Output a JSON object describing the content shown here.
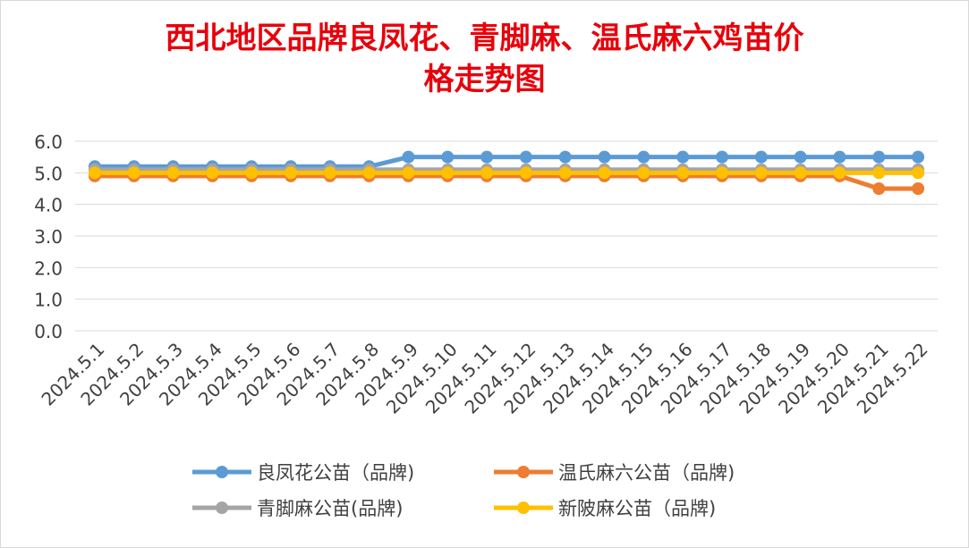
{
  "title_line1": "西北地区品牌良凤花、青脚麻、温氏麻六鸡苗价",
  "title_line2": "格走势图",
  "chart_data": {
    "type": "line",
    "title": "西北地区品牌良凤花、青脚麻、温氏麻六鸡苗价格走势图",
    "categories": [
      "2024.5.1",
      "2024.5.2",
      "2024.5.3",
      "2024.5.4",
      "2024.5.5",
      "2024.5.6",
      "2024.5.7",
      "2024.5.8",
      "2024.5.9",
      "2024.5.10",
      "2024.5.11",
      "2024.5.12",
      "2024.5.13",
      "2024.5.14",
      "2024.5.15",
      "2024.5.16",
      "2024.5.17",
      "2024.5.18",
      "2024.5.19",
      "2024.5.20",
      "2024.5.21",
      "2024.5.22"
    ],
    "ylim": [
      0,
      6
    ],
    "yticks": [
      "0.0",
      "1.0",
      "2.0",
      "3.0",
      "4.0",
      "5.0",
      "6.0"
    ],
    "grid": true,
    "legend_position": "bottom",
    "series": [
      {
        "name": "良凤花公苗（品牌)",
        "color": "#5b9bd5",
        "values": [
          5.2,
          5.2,
          5.2,
          5.2,
          5.2,
          5.2,
          5.2,
          5.2,
          5.5,
          5.5,
          5.5,
          5.5,
          5.5,
          5.5,
          5.5,
          5.5,
          5.5,
          5.5,
          5.5,
          5.5,
          5.5,
          5.5
        ]
      },
      {
        "name": "青脚麻公苗(品牌)",
        "color": "#a5a5a5",
        "values": [
          5.1,
          5.1,
          5.1,
          5.1,
          5.1,
          5.1,
          5.1,
          5.1,
          5.1,
          5.1,
          5.1,
          5.1,
          5.1,
          5.1,
          5.1,
          5.1,
          5.1,
          5.1,
          5.1,
          5.1,
          5.1,
          5.1
        ]
      },
      {
        "name": "温氏麻六公苗（品牌)",
        "color": "#ed7d31",
        "values": [
          4.9,
          4.9,
          4.9,
          4.9,
          4.9,
          4.9,
          4.9,
          4.9,
          4.9,
          4.9,
          4.9,
          4.9,
          4.9,
          4.9,
          4.9,
          4.9,
          4.9,
          4.9,
          4.9,
          4.9,
          4.5,
          4.5
        ]
      },
      {
        "name": "新陂麻公苗（品牌)",
        "color": "#ffc000",
        "values": [
          5.0,
          5.0,
          5.0,
          5.0,
          5.0,
          5.0,
          5.0,
          5.0,
          5.0,
          5.0,
          5.0,
          5.0,
          5.0,
          5.0,
          5.0,
          5.0,
          5.0,
          5.0,
          5.0,
          5.0,
          5.0,
          5.0
        ]
      }
    ]
  }
}
